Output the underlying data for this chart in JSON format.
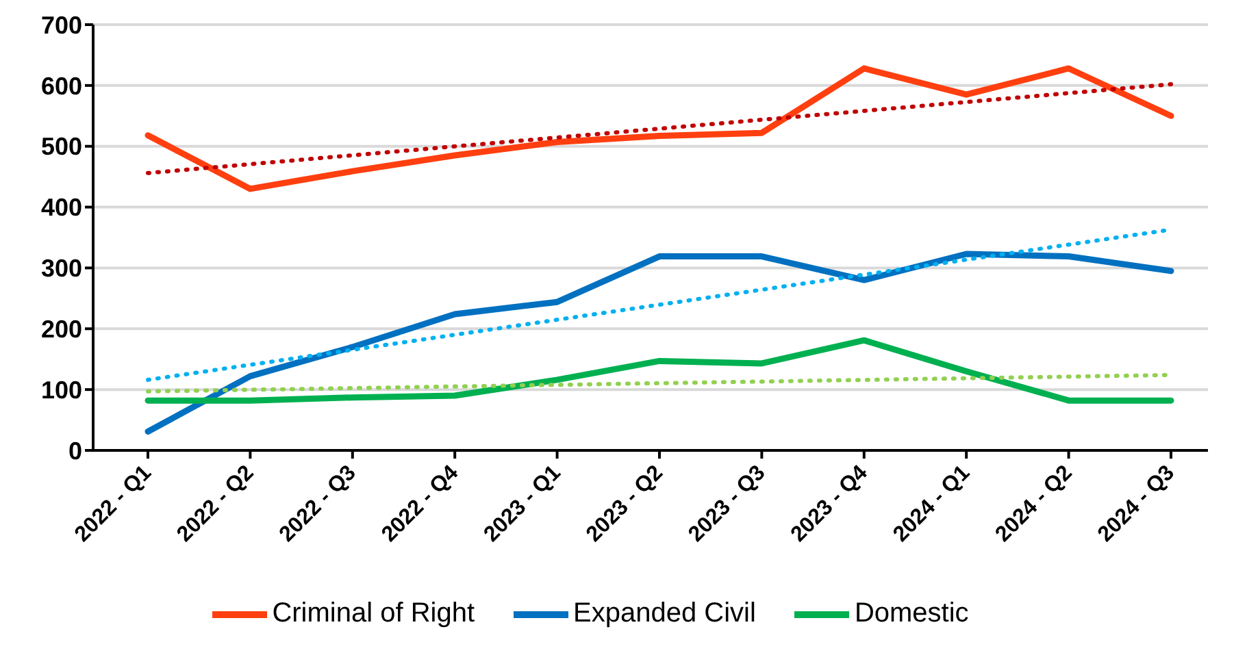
{
  "chart_data": {
    "type": "line",
    "categories": [
      "2022 - Q1",
      "2022 - Q2",
      "2022 - Q3",
      "2022 - Q4",
      "2023 - Q1",
      "2023 - Q2",
      "2023 - Q3",
      "2023 - Q4",
      "2024 - Q1",
      "2024 - Q2",
      "2024 - Q3"
    ],
    "series": [
      {
        "name": "Criminal of Right",
        "color": "#ff3f0f",
        "values": [
          518,
          430,
          459,
          485,
          507,
          517,
          522,
          628,
          585,
          628,
          550
        ]
      },
      {
        "name": "Expanded Civil",
        "color": "#0070c0",
        "values": [
          31,
          122,
          170,
          224,
          244,
          319,
          319,
          280,
          323,
          319,
          295
        ]
      },
      {
        "name": "Domestic",
        "color": "#00b050",
        "values": [
          82,
          82,
          87,
          90,
          116,
          147,
          143,
          181,
          130,
          82,
          82
        ]
      },
      {
        "color": "#c00000",
        "line_style": "dotted",
        "values": [
          456,
          null,
          null,
          null,
          null,
          null,
          null,
          null,
          null,
          null,
          602
        ]
      },
      {
        "color": "#00b0f0",
        "line_style": "dotted",
        "values": [
          116,
          null,
          null,
          null,
          null,
          null,
          null,
          null,
          null,
          null,
          363
        ]
      },
      {
        "color": "#92d050",
        "line_style": "dotted",
        "values": [
          97,
          null,
          null,
          null,
          null,
          null,
          null,
          null,
          null,
          null,
          124
        ]
      }
    ],
    "ylim": [
      0,
      700
    ],
    "yticks": [
      0,
      100,
      200,
      300,
      400,
      500,
      600,
      700
    ],
    "grid": "y",
    "legend": "bottom",
    "marker": "none",
    "line_style": "solid"
  }
}
